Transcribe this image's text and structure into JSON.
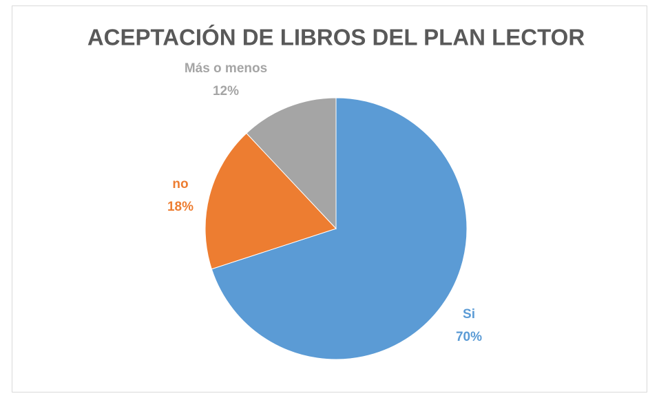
{
  "chart_data": {
    "type": "pie",
    "title": "ACEPTACIÓN DE LIBROS DEL PLAN LECTOR",
    "categories": [
      "Si",
      "no",
      "Más o menos"
    ],
    "values": [
      70,
      18,
      12
    ],
    "value_labels": [
      "70%",
      "18%",
      "12%"
    ],
    "colors": [
      "#5b9bd5",
      "#ed7d31",
      "#a5a5a5"
    ]
  }
}
